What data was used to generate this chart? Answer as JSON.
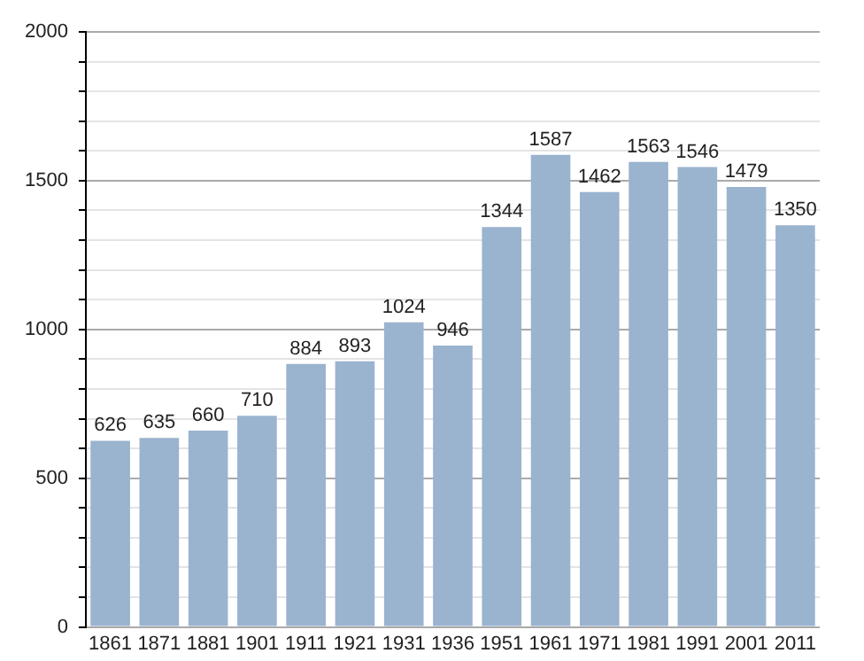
{
  "chart_data": {
    "type": "bar",
    "categories": [
      "1861",
      "1871",
      "1881",
      "1901",
      "1911",
      "1921",
      "1931",
      "1936",
      "1951",
      "1961",
      "1971",
      "1981",
      "1991",
      "2001",
      "2011"
    ],
    "values": [
      626,
      635,
      660,
      710,
      884,
      893,
      1024,
      946,
      1344,
      1587,
      1462,
      1563,
      1546,
      1479,
      1350
    ],
    "color": "#9ab3cf",
    "ylim": [
      0,
      2000
    ],
    "yticks": [
      0,
      {
        "value": 100,
        "label": null
      },
      {
        "value": 200,
        "label": null
      },
      {
        "value": 300,
        "label": null
      },
      {
        "value": 400,
        "label": null
      },
      500,
      {
        "value": 600,
        "label": null
      },
      {
        "value": 700,
        "label": null
      },
      {
        "value": 800,
        "label": null
      },
      {
        "value": 900,
        "label": null
      },
      1000,
      {
        "value": 1100,
        "label": null
      },
      {
        "value": 1200,
        "label": null
      },
      {
        "value": 1300,
        "label": null
      },
      {
        "value": 1400,
        "label": null
      },
      1500,
      {
        "value": 1600,
        "label": null
      },
      {
        "value": 1700,
        "label": null
      },
      {
        "value": 1800,
        "label": null
      },
      {
        "value": 1900,
        "label": null
      },
      2000
    ],
    "grid": "y",
    "data_labels": true
  }
}
